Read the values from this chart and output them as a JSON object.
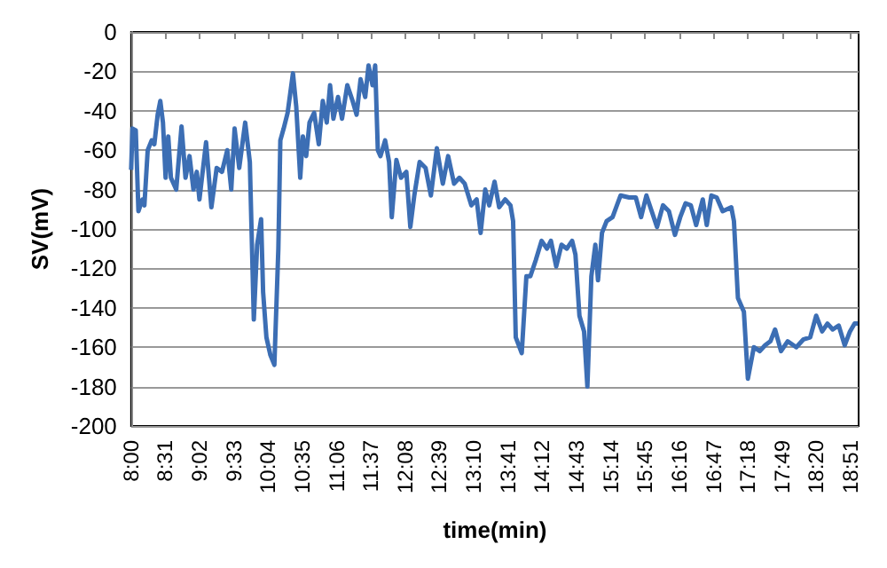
{
  "chart_data": {
    "type": "line",
    "xlabel": "time(min)",
    "ylabel": "SV(mV)",
    "series": [
      {
        "color": "#3c6eb4",
        "x": [
          8.0,
          8.02,
          8.07,
          8.11,
          8.17,
          8.2,
          8.25,
          8.31,
          8.35,
          8.4,
          8.44,
          8.48,
          8.52,
          8.56,
          8.6,
          8.68,
          8.76,
          8.82,
          8.88,
          8.94,
          8.99,
          9.03,
          9.13,
          9.21,
          9.29,
          9.37,
          9.45,
          9.51,
          9.56,
          9.63,
          9.72,
          9.79,
          9.85,
          9.9,
          9.96,
          9.99,
          10.04,
          10.1,
          10.16,
          10.22,
          10.25,
          10.3,
          10.36,
          10.4,
          10.44,
          10.49,
          10.55,
          10.59,
          10.64,
          10.69,
          10.76,
          10.83,
          10.89,
          10.95,
          11.0,
          11.05,
          11.12,
          11.18,
          11.26,
          11.34,
          11.4,
          11.46,
          11.53,
          11.58,
          11.64,
          11.68,
          11.72,
          11.76,
          11.83,
          11.89,
          11.93,
          12.0,
          12.07,
          12.15,
          12.21,
          12.27,
          12.35,
          12.44,
          12.52,
          12.61,
          12.7,
          12.78,
          12.87,
          12.95,
          13.03,
          13.13,
          13.21,
          13.27,
          13.34,
          13.4,
          13.48,
          13.55,
          13.64,
          13.72,
          13.76,
          13.8,
          13.89,
          13.96,
          14.02,
          14.1,
          14.19,
          14.27,
          14.33,
          14.41,
          14.49,
          14.57,
          14.65,
          14.7,
          14.76,
          14.83,
          14.88,
          14.94,
          15.0,
          15.04,
          15.1,
          15.17,
          15.26,
          15.38,
          15.51,
          15.61,
          15.69,
          15.77,
          15.85,
          15.93,
          16.02,
          16.11,
          16.2,
          16.28,
          16.36,
          16.44,
          16.52,
          16.62,
          16.68,
          16.75,
          16.83,
          16.92,
          17.05,
          17.09,
          17.15,
          17.24,
          17.3,
          17.39,
          17.48,
          17.56,
          17.64,
          17.71,
          17.8,
          17.9,
          18.03,
          18.14,
          18.24,
          18.33,
          18.42,
          18.5,
          18.58,
          18.67,
          18.76,
          18.84,
          18.91,
          18.96
        ],
        "values": [
          -70,
          -49,
          -50,
          -91,
          -85,
          -88,
          -60,
          -55,
          -57,
          -42,
          -35,
          -46,
          -74,
          -53,
          -74,
          -80,
          -48,
          -74,
          -63,
          -80,
          -71,
          -85,
          -56,
          -89,
          -69,
          -71,
          -60,
          -80,
          -49,
          -69,
          -46,
          -66,
          -146,
          -108,
          -95,
          -132,
          -155,
          -164,
          -169,
          -110,
          -55,
          -49,
          -41,
          -31,
          -21,
          -38,
          -74,
          -53,
          -63,
          -46,
          -41,
          -57,
          -35,
          -46,
          -27,
          -44,
          -33,
          -44,
          -27,
          -35,
          -42,
          -24,
          -33,
          -17,
          -27,
          -17,
          -60,
          -63,
          -55,
          -66,
          -94,
          -65,
          -74,
          -71,
          -99,
          -83,
          -66,
          -69,
          -83,
          -59,
          -77,
          -63,
          -77,
          -74,
          -77,
          -88,
          -85,
          -102,
          -80,
          -88,
          -76,
          -89,
          -85,
          -88,
          -96,
          -155,
          -163,
          -124,
          -124,
          -116,
          -106,
          -110,
          -106,
          -119,
          -108,
          -110,
          -106,
          -113,
          -144,
          -152,
          -180,
          -124,
          -108,
          -126,
          -102,
          -96,
          -94,
          -83,
          -84,
          -84,
          -94,
          -83,
          -91,
          -99,
          -88,
          -91,
          -103,
          -94,
          -87,
          -88,
          -98,
          -85,
          -98,
          -83,
          -84,
          -91,
          -89,
          -96,
          -135,
          -142,
          -176,
          -160,
          -162,
          -159,
          -157,
          -151,
          -162,
          -157,
          -160,
          -156,
          -155,
          -144,
          -152,
          -148,
          -151,
          -149,
          -159,
          -152,
          -148,
          -148
        ]
      }
    ],
    "xlim": [
      8,
      18.97
    ],
    "xticks": [
      {
        "value": 8,
        "label": "8:00"
      },
      {
        "value": 8.5167,
        "label": "8:31"
      },
      {
        "value": 9.0333,
        "label": "9:02"
      },
      {
        "value": 9.55,
        "label": "9:33"
      },
      {
        "value": 10.0667,
        "label": "10:04"
      },
      {
        "value": 10.5833,
        "label": "10:35"
      },
      {
        "value": 11.1,
        "label": "11:06"
      },
      {
        "value": 11.6167,
        "label": "11:37"
      },
      {
        "value": 12.1333,
        "label": "12:08"
      },
      {
        "value": 12.65,
        "label": "12:39"
      },
      {
        "value": 13.1667,
        "label": "13:10"
      },
      {
        "value": 13.6833,
        "label": "13:41"
      },
      {
        "value": 14.2,
        "label": "14:12"
      },
      {
        "value": 14.7167,
        "label": "14:43"
      },
      {
        "value": 15.2333,
        "label": "15:14"
      },
      {
        "value": 15.75,
        "label": "15:45"
      },
      {
        "value": 16.2667,
        "label": "16:16"
      },
      {
        "value": 16.7833,
        "label": "16:47"
      },
      {
        "value": 17.3,
        "label": "17:18"
      },
      {
        "value": 17.8167,
        "label": "17:49"
      },
      {
        "value": 18.3333,
        "label": "18:20"
      },
      {
        "value": 18.85,
        "label": "18:51"
      }
    ],
    "ylim": [
      -200,
      0
    ],
    "yticks": [
      -200,
      -180,
      -160,
      -140,
      -120,
      -100,
      -80,
      -60,
      -40,
      -20,
      0
    ],
    "grid": "y",
    "marker": "none",
    "line_style": "solid"
  }
}
